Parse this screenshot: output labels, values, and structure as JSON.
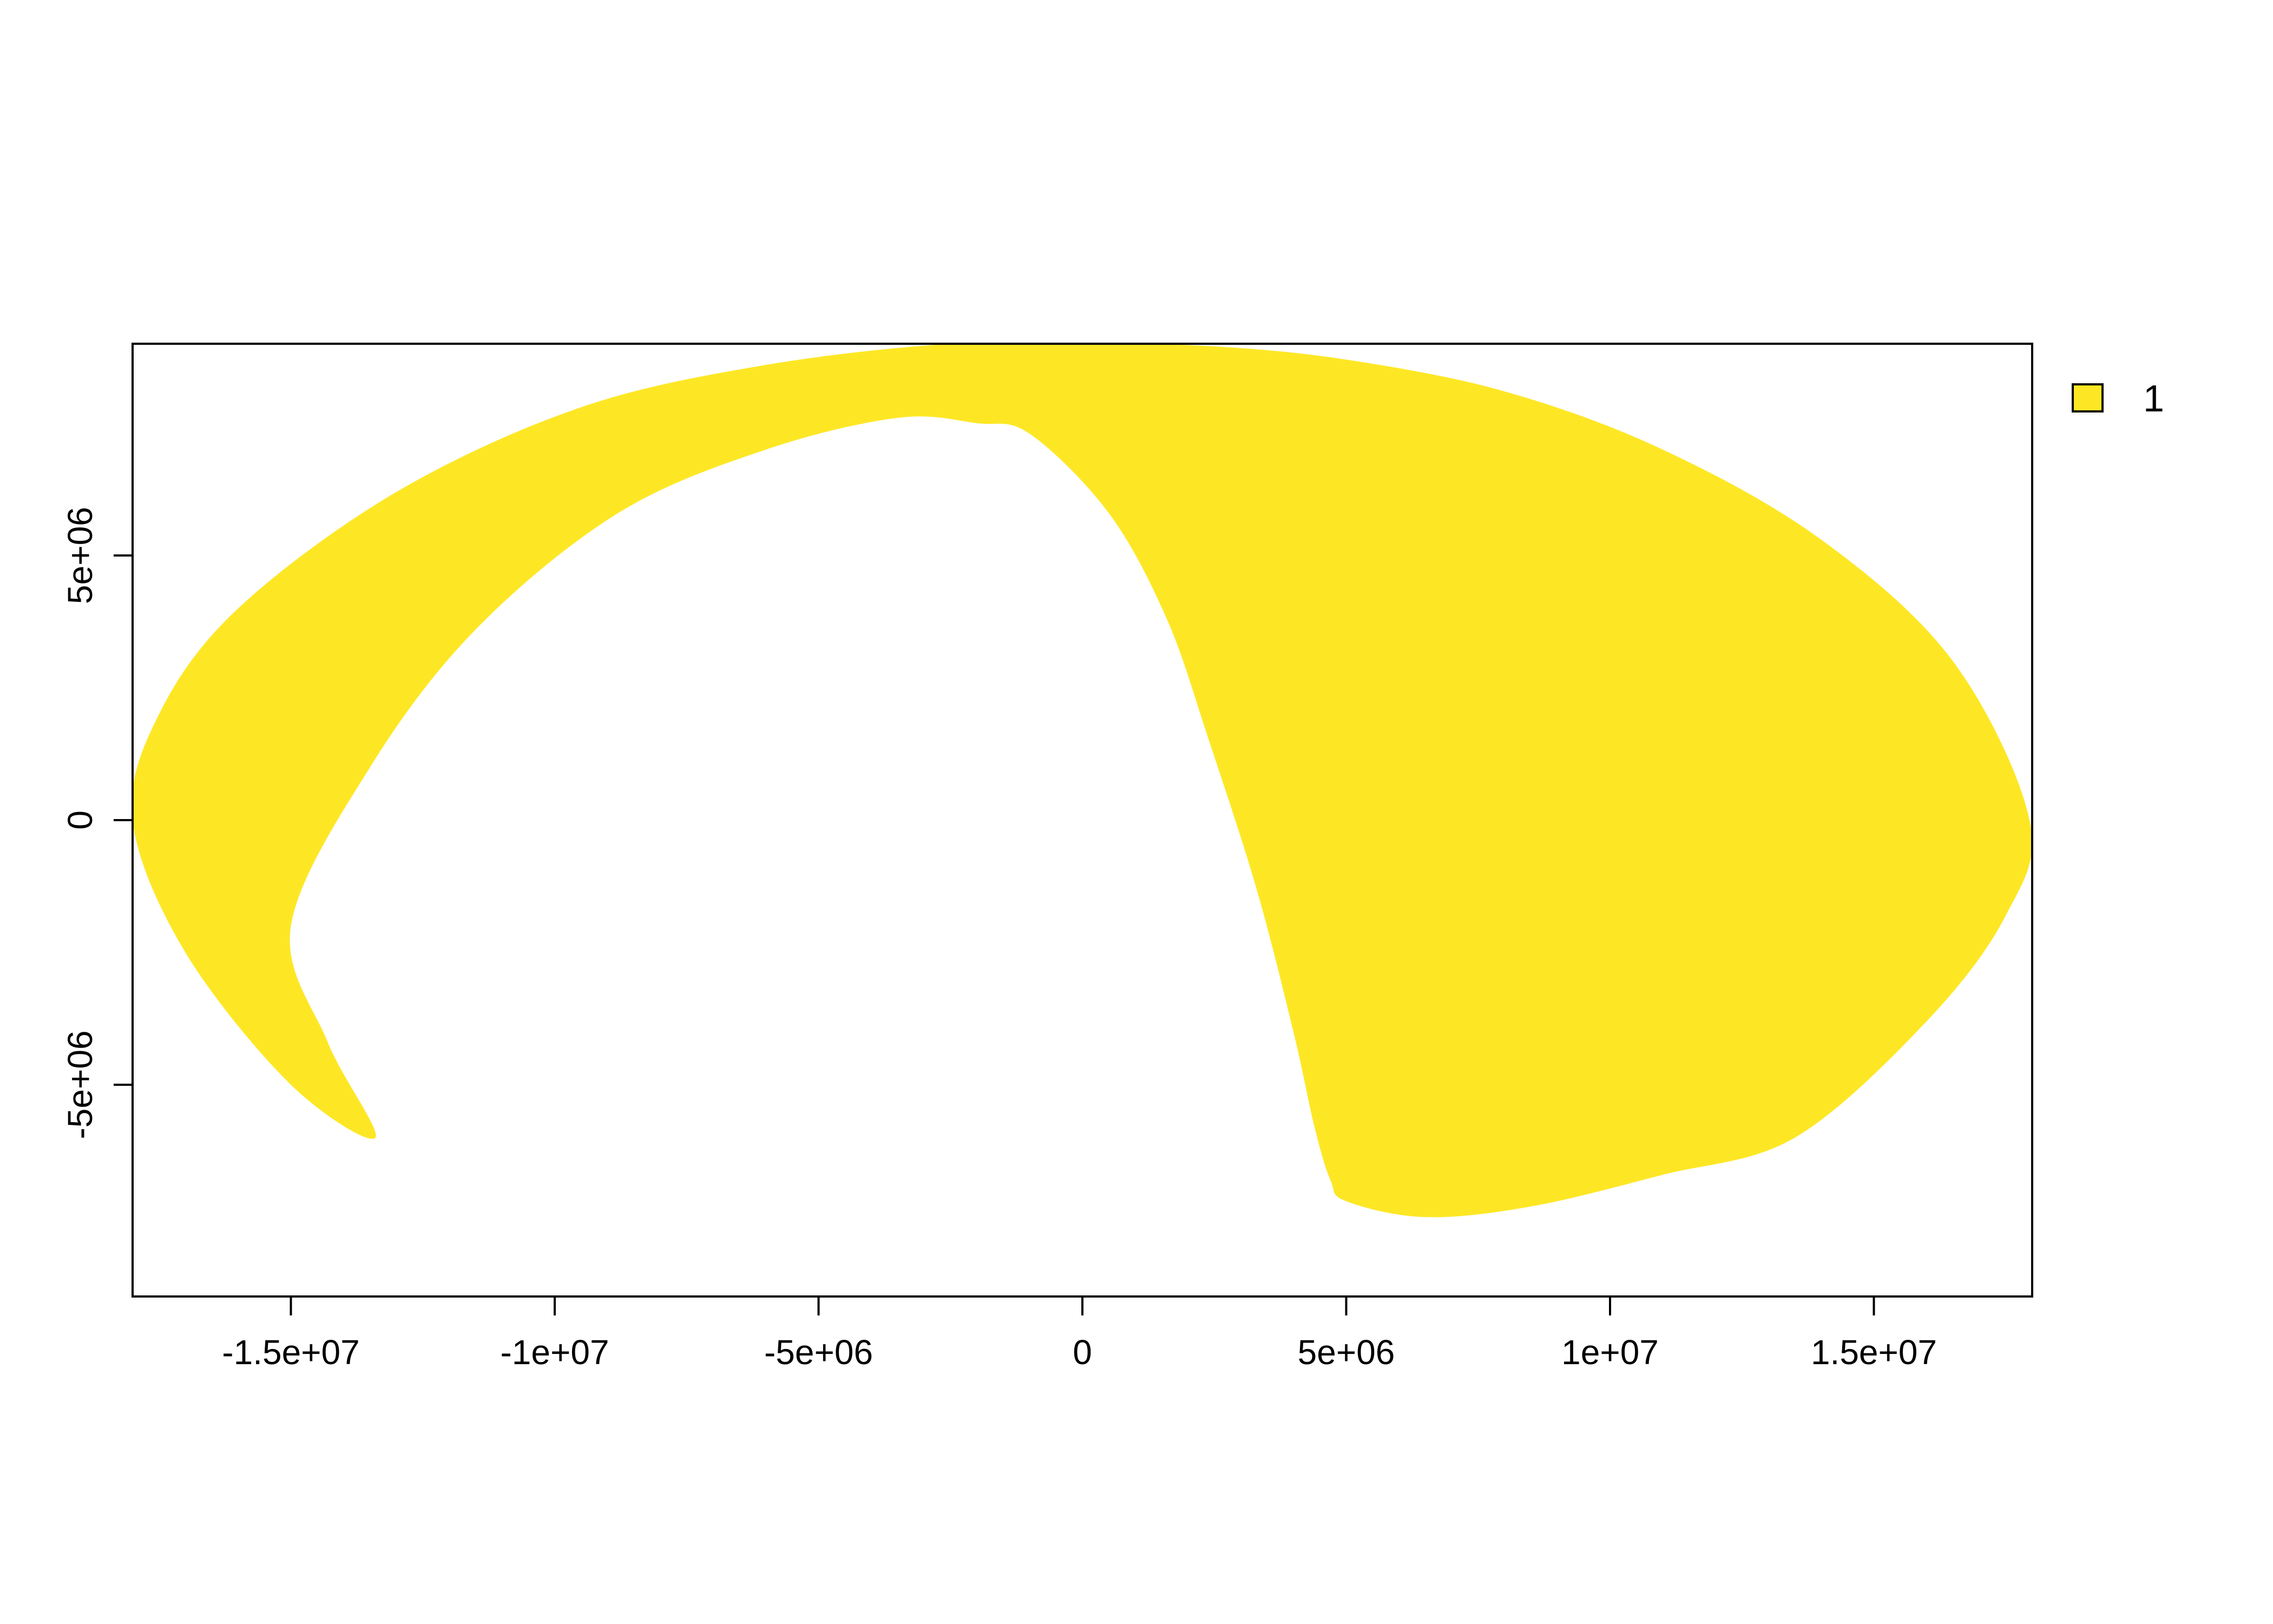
{
  "chart_data": {
    "type": "raster-map",
    "title": "",
    "xlabel": "",
    "ylabel": "",
    "xlim": [
      -18000000,
      18000000
    ],
    "ylim": [
      -9000000,
      9000000
    ],
    "x_ticks": [
      {
        "value": -15000000,
        "label": "-1.5e+07"
      },
      {
        "value": -10000000,
        "label": "-1e+07"
      },
      {
        "value": -5000000,
        "label": "-5e+06"
      },
      {
        "value": 0,
        "label": "0"
      },
      {
        "value": 5000000,
        "label": "5e+06"
      },
      {
        "value": 10000000,
        "label": "1e+07"
      },
      {
        "value": 15000000,
        "label": "1.5e+07"
      }
    ],
    "y_ticks": [
      {
        "value": -5000000,
        "label": "-5e+06"
      },
      {
        "value": 0,
        "label": "0"
      },
      {
        "value": 5000000,
        "label": "5e+06"
      }
    ],
    "fill_color": "#FDE725",
    "legend": {
      "position": "top-right",
      "entries": [
        {
          "label": "1",
          "color": "#FDE725"
        }
      ]
    },
    "region_outline": [
      [
        -2500000,
        9000000
      ],
      [
        0,
        9000000
      ],
      [
        2500000,
        8950000
      ],
      [
        5000000,
        8700000
      ],
      [
        8000000,
        8100000
      ],
      [
        11000000,
        7000000
      ],
      [
        14000000,
        5300000
      ],
      [
        16500000,
        3000000
      ],
      [
        17950000,
        0
      ],
      [
        17500000,
        -1800000
      ],
      [
        16000000,
        -3800000
      ],
      [
        13500000,
        -6000000
      ],
      [
        11000000,
        -6700000
      ],
      [
        8500000,
        -7300000
      ],
      [
        6500000,
        -7500000
      ],
      [
        5000000,
        -7200000
      ],
      [
        4700000,
        -6800000
      ],
      [
        4400000,
        -5800000
      ],
      [
        4000000,
        -4000000
      ],
      [
        3300000,
        -1300000
      ],
      [
        2400000,
        1500000
      ],
      [
        1600000,
        3800000
      ],
      [
        500000,
        5800000
      ],
      [
        -1000000,
        7300000
      ],
      [
        -2000000,
        7500000
      ],
      [
        -3500000,
        7600000
      ],
      [
        -6000000,
        7000000
      ],
      [
        -8800000,
        5800000
      ],
      [
        -11500000,
        3600000
      ],
      [
        -13500000,
        1000000
      ],
      [
        -15000000,
        -2000000
      ],
      [
        -14300000,
        -4200000
      ],
      [
        -13400000,
        -6000000
      ],
      [
        -15000000,
        -5000000
      ],
      [
        -17000000,
        -2500000
      ],
      [
        -18000000,
        0
      ],
      [
        -17500000,
        2000000
      ],
      [
        -16000000,
        4000000
      ],
      [
        -13000000,
        6200000
      ],
      [
        -9500000,
        7800000
      ],
      [
        -6000000,
        8600000
      ]
    ]
  }
}
